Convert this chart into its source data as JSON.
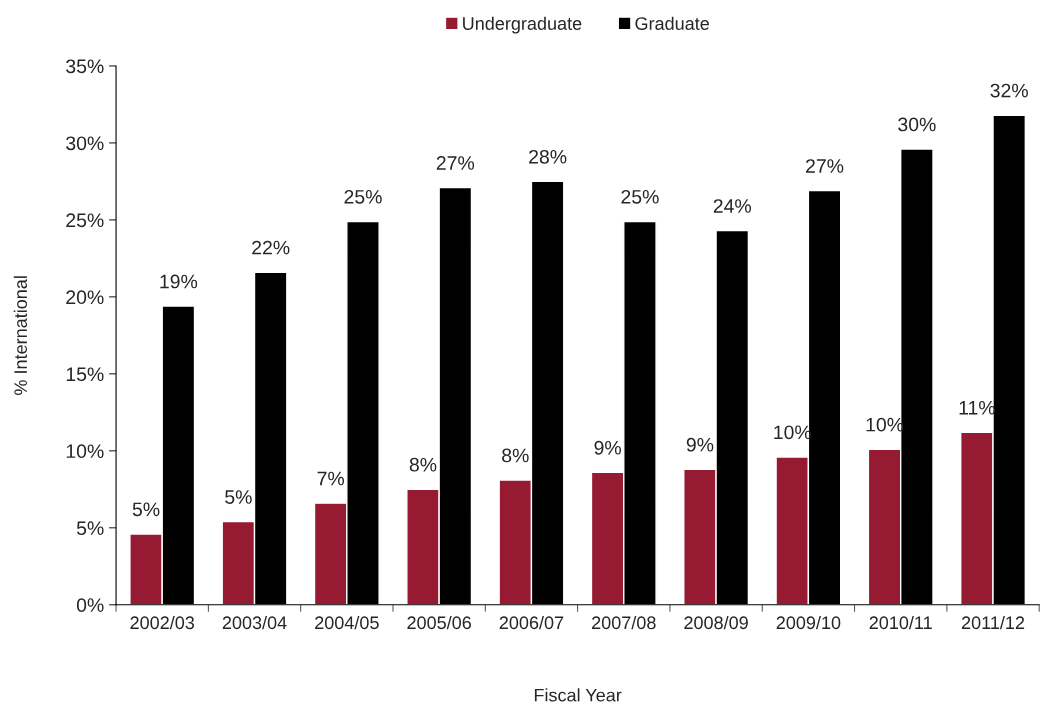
{
  "chart_data": {
    "type": "bar",
    "xlabel": "Fiscal Year",
    "ylabel": "% International",
    "categories": [
      "2002/03",
      "2003/04",
      "2004/05",
      "2005/06",
      "2006/07",
      "2007/08",
      "2008/09",
      "2009/10",
      "2010/11",
      "2011/12"
    ],
    "series": [
      {
        "name": "Undergraduate",
        "color": "#961a32",
        "values": [
          4.6,
          5.4,
          6.6,
          7.5,
          8.1,
          8.6,
          8.8,
          9.6,
          10.1,
          11.2
        ],
        "value_labels": [
          "5%",
          "5%",
          "7%",
          "8%",
          "8%",
          "9%",
          "9%",
          "10%",
          "10%",
          "11%"
        ]
      },
      {
        "name": "Graduate",
        "color": "#000000",
        "values": [
          19.4,
          21.6,
          24.9,
          27.1,
          27.5,
          24.9,
          24.3,
          26.9,
          29.6,
          31.8
        ],
        "value_labels": [
          "19%",
          "22%",
          "25%",
          "27%",
          "28%",
          "25%",
          "24%",
          "27%",
          "30%",
          "32%"
        ]
      }
    ],
    "ylim": [
      0,
      35
    ],
    "yticks": [
      {
        "value": 0,
        "label": "0%"
      },
      {
        "value": 5,
        "label": "5%"
      },
      {
        "value": 10,
        "label": "10%"
      },
      {
        "value": 15,
        "label": "15%"
      },
      {
        "value": 20,
        "label": "20%"
      },
      {
        "value": 25,
        "label": "25%"
      },
      {
        "value": 30,
        "label": "30%"
      },
      {
        "value": 35,
        "label": "35%"
      }
    ],
    "legend": "top",
    "grid": false
  }
}
